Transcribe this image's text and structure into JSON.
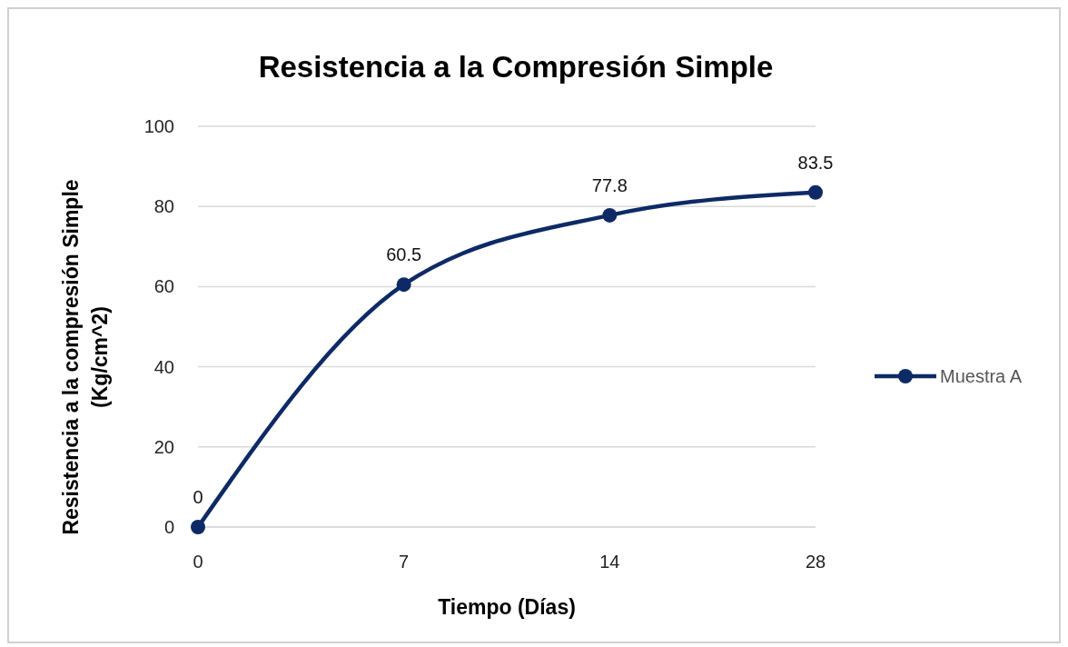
{
  "chart_data": {
    "type": "line",
    "title": "Resistencia a la Compresión Simple",
    "xlabel": "Tiempo (Días)",
    "ylabel": "Resistencia a la compresión Simple\n(Kg/cm^2)",
    "categories": [
      "0",
      "7",
      "14",
      "28"
    ],
    "series": [
      {
        "name": "Muestra A",
        "color": "#0e2a66",
        "values": [
          0,
          60.5,
          77.8,
          83.5
        ]
      }
    ],
    "ylim": [
      0,
      100
    ],
    "yticks": [
      0,
      20,
      40,
      60,
      80,
      100
    ],
    "grid": "y",
    "legend": "right",
    "marker": "circle",
    "line_style": "solid",
    "data_labels": true
  }
}
